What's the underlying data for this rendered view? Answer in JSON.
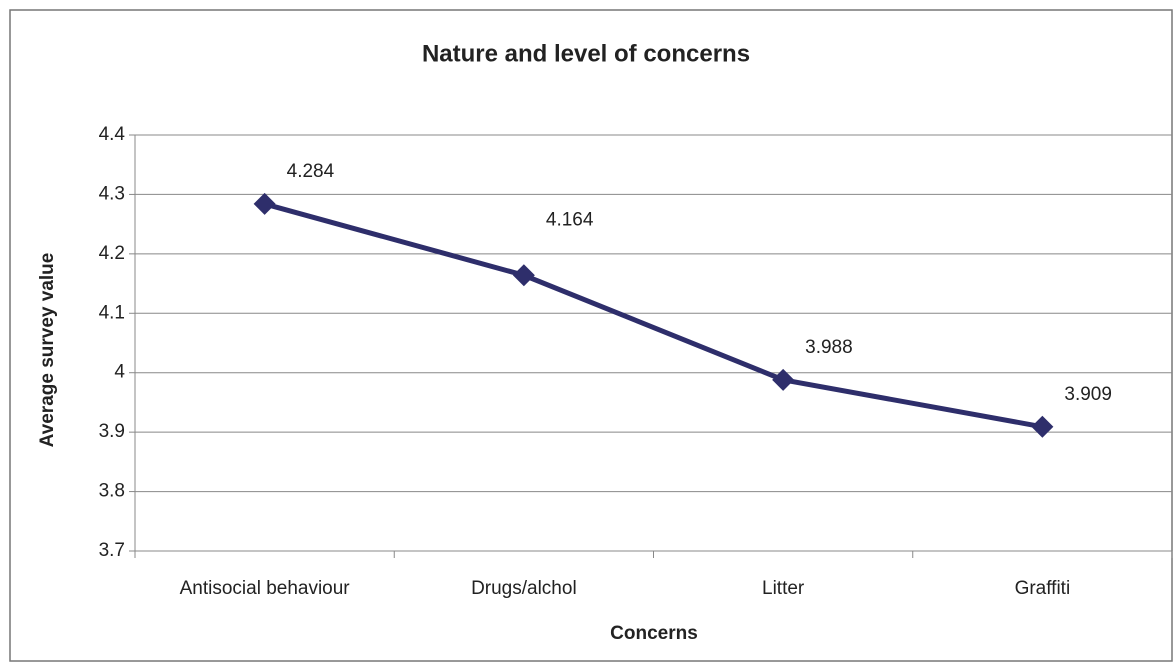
{
  "chart_data": {
    "type": "line",
    "title": "Nature and level of concerns",
    "x_label": "Concerns",
    "y_label": "Average survey value",
    "categories": [
      "Antisocial behaviour",
      "Drugs/alchol",
      "Litter",
      "Graffiti"
    ],
    "series": [
      {
        "name": "Average survey value",
        "color": "#2e2e6b",
        "values": [
          4.284,
          4.164,
          3.988,
          3.909
        ]
      }
    ],
    "ylim": [
      3.7,
      4.4
    ],
    "yticks": [
      3.7,
      3.8,
      3.9,
      4,
      4.1,
      4.2,
      4.3,
      4.4
    ],
    "grid": true,
    "legend": false
  }
}
